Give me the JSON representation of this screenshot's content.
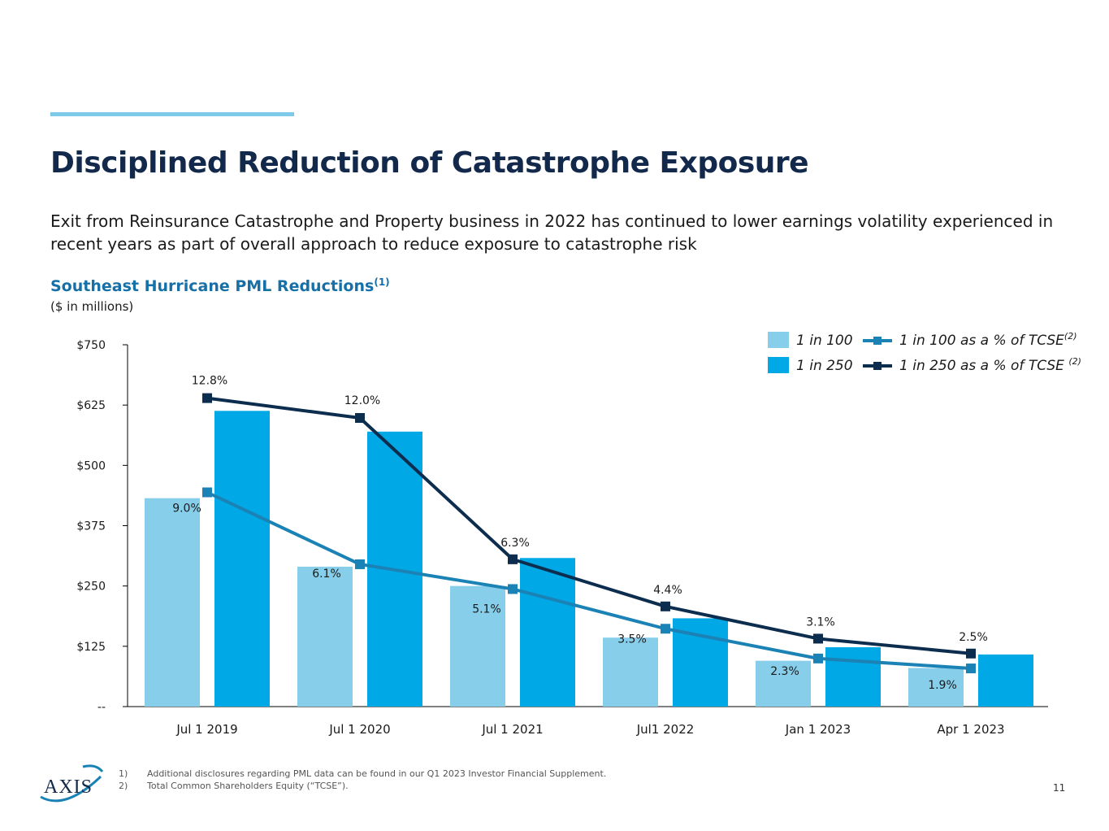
{
  "title": "Disciplined Reduction of Catastrophe Exposure",
  "subtitle": "Exit from Reinsurance Catastrophe and Property business in 2022 has continued to lower earnings volatility experienced in recent years as part of overall approach to reduce exposure to catastrophe risk",
  "chart_heading": {
    "text": "Southeast Hurricane PML Reductions",
    "superscript": "(1)",
    "units": "($ in millions)"
  },
  "chart_data": {
    "type": "bar",
    "title": "Southeast Hurricane PML Reductions",
    "categories": [
      "Jul 1 2019",
      "Jul 1 2020",
      "Jul 1 2021",
      "Jul1 2022",
      "Jan 1 2023",
      "Apr 1 2023"
    ],
    "y_ticks": [
      {
        "value": 0,
        "label": "--"
      },
      {
        "value": 125,
        "label": "$125"
      },
      {
        "value": 250,
        "label": "$250"
      },
      {
        "value": 375,
        "label": "$375"
      },
      {
        "value": 500,
        "label": "$500"
      },
      {
        "value": 625,
        "label": "$625"
      },
      {
        "value": 750,
        "label": "$750"
      }
    ],
    "ylim": [
      0,
      750
    ],
    "series": [
      {
        "name": "1 in 100",
        "kind": "bar",
        "color": "#87ceeb",
        "values": [
          432,
          290,
          250,
          143,
          95,
          80
        ]
      },
      {
        "name": "1 in 250",
        "kind": "bar",
        "color": "#00a8e6",
        "values": [
          613,
          570,
          308,
          183,
          123,
          108
        ]
      }
    ],
    "line_series": [
      {
        "name": "1 in 100 as a % of TCSE",
        "legend_sup": "(2)",
        "color": "#1b82b5",
        "pct_values": [
          9.0,
          6.1,
          5.1,
          3.5,
          2.3,
          1.9
        ],
        "labels": [
          "9.0%",
          "6.1%",
          "5.1%",
          "3.5%",
          "2.3%",
          "1.9%"
        ]
      },
      {
        "name": "1 in 250 as a % of TCSE ",
        "legend_sup": "(2)",
        "color": "#0d2d4e",
        "pct_values": [
          12.8,
          12.0,
          6.3,
          4.4,
          3.1,
          2.5
        ],
        "labels": [
          "12.8%",
          "12.0%",
          "6.3%",
          "4.4%",
          "3.1%",
          "2.5%"
        ]
      }
    ],
    "legend_position": "top-right"
  },
  "footnotes": [
    {
      "num": "1)",
      "text": "Additional disclosures regarding PML data can be found in our Q1 2023 Investor Financial Supplement."
    },
    {
      "num": "2)",
      "text": "Total Common Shareholders Equity (“TCSE”)."
    }
  ],
  "logo_text": "AXIS",
  "page_number": "11"
}
